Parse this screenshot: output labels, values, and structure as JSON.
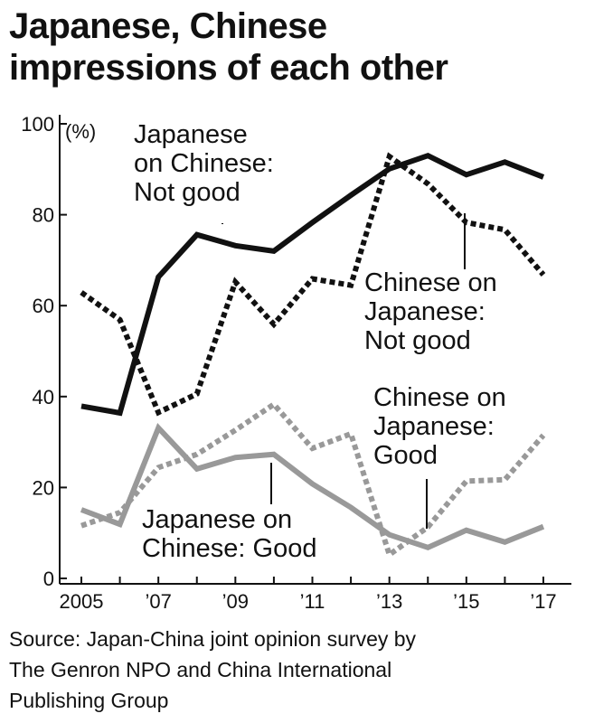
{
  "chart_data": {
    "type": "line",
    "title_lines": [
      "Japanese, Chinese",
      "impressions of each other"
    ],
    "y_unit": "(%)",
    "ylim": [
      0,
      100
    ],
    "yticks": [
      0,
      20,
      40,
      60,
      80,
      100
    ],
    "xlim": [
      2005,
      2017
    ],
    "x": [
      2005,
      2006,
      2007,
      2008,
      2009,
      2010,
      2011,
      2012,
      2013,
      2014,
      2015,
      2016,
      2017
    ],
    "xticks": [
      {
        "x": 2005,
        "label": "2005"
      },
      {
        "x": 2007,
        "label": "’07"
      },
      {
        "x": 2009,
        "label": "’09"
      },
      {
        "x": 2011,
        "label": "’11"
      },
      {
        "x": 2013,
        "label": "’13"
      },
      {
        "x": 2015,
        "label": "’15"
      },
      {
        "x": 2017,
        "label": "’17"
      }
    ],
    "grid": false,
    "series": [
      {
        "name_lines": [
          "Japanese",
          "on Chinese:",
          "Not good"
        ],
        "color": "#111111",
        "dash": "solid",
        "values": [
          37.9,
          36.4,
          66.3,
          75.6,
          73.2,
          72.0,
          78.3,
          84.3,
          90.1,
          93.0,
          88.8,
          91.6,
          88.3
        ]
      },
      {
        "name_lines": [
          "Chinese on",
          "Japanese:",
          "Not good"
        ],
        "color": "#111111",
        "dash": "dotted",
        "values": [
          62.9,
          56.9,
          36.5,
          40.6,
          65.2,
          55.9,
          65.9,
          64.5,
          92.8,
          86.8,
          78.3,
          76.7,
          66.8
        ]
      },
      {
        "name_lines": [
          "Chinese on",
          "Japanese:",
          "Good"
        ],
        "color": "#999999",
        "dash": "dotted",
        "values": [
          11.6,
          14.5,
          24.4,
          27.3,
          32.6,
          38.3,
          28.6,
          31.8,
          5.2,
          11.3,
          21.4,
          21.7,
          31.5
        ]
      },
      {
        "name_lines": [
          "Japanese on",
          "Chinese: Good"
        ],
        "color": "#999999",
        "dash": "solid",
        "values": [
          15.1,
          11.9,
          33.1,
          24.1,
          26.6,
          27.3,
          20.8,
          15.6,
          9.6,
          6.8,
          10.6,
          8.0,
          11.4
        ]
      }
    ]
  },
  "source_lines": [
    "Source: Japan-China joint opinion survey by",
    "The Genron NPO and China International",
    "Publishing Group"
  ]
}
